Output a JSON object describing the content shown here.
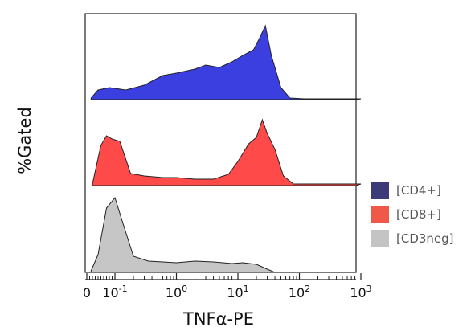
{
  "chart_data": {
    "type": "area",
    "subtype": "stacked-histogram-overlay",
    "xlabel": "TNFα-PE",
    "ylabel": "%Gated",
    "x_scale": "biexponential",
    "xlim": [
      -0.01,
      1000
    ],
    "x_ticks": [
      {
        "value": 0,
        "base": "0",
        "exp": ""
      },
      {
        "value": 0.1,
        "base": "10",
        "exp": "-1"
      },
      {
        "value": 1,
        "base": "10",
        "exp": "0"
      },
      {
        "value": 10,
        "base": "10",
        "exp": "1"
      },
      {
        "value": 100,
        "base": "10",
        "exp": "2"
      },
      {
        "value": 1000,
        "base": "10",
        "exp": "3"
      }
    ],
    "grid": false,
    "legend_position": "right",
    "series": [
      {
        "name": "[CD4+]",
        "color": "#3b3fe0",
        "legend_color": "#3d3a7a",
        "x": [
          0.015,
          0.04,
          0.08,
          0.15,
          0.3,
          0.6,
          1,
          2,
          3,
          5,
          8,
          12,
          18,
          22,
          28,
          35,
          50,
          70,
          120,
          1000
        ],
        "y": [
          0.02,
          0.12,
          0.15,
          0.12,
          0.18,
          0.3,
          0.33,
          0.38,
          0.43,
          0.4,
          0.47,
          0.55,
          0.62,
          0.75,
          0.92,
          0.55,
          0.15,
          0.02,
          0.01,
          0.01
        ]
      },
      {
        "name": "[CD8+]",
        "color": "#ff4a4a",
        "legend_color": "#f0594a",
        "x": [
          0.02,
          0.05,
          0.07,
          0.09,
          0.12,
          0.18,
          0.3,
          0.6,
          1,
          2,
          4,
          7,
          10,
          15,
          20,
          25,
          30,
          40,
          55,
          80,
          1000
        ],
        "y": [
          0.02,
          0.5,
          0.62,
          0.58,
          0.55,
          0.15,
          0.12,
          0.1,
          0.1,
          0.08,
          0.08,
          0.14,
          0.3,
          0.52,
          0.6,
          0.82,
          0.65,
          0.45,
          0.12,
          0.02,
          0.02
        ]
      },
      {
        "name": "[CD3neg]",
        "color": "#c6c6c6",
        "legend_color": "#c4c4c4",
        "x": [
          0.015,
          0.04,
          0.07,
          0.1,
          0.13,
          0.2,
          0.35,
          0.6,
          1,
          2,
          4,
          8,
          12,
          20,
          30,
          40
        ],
        "y": [
          0.02,
          0.22,
          0.8,
          0.93,
          0.65,
          0.2,
          0.14,
          0.13,
          0.12,
          0.14,
          0.13,
          0.11,
          0.12,
          0.1,
          0.04,
          0.0
        ]
      }
    ]
  }
}
